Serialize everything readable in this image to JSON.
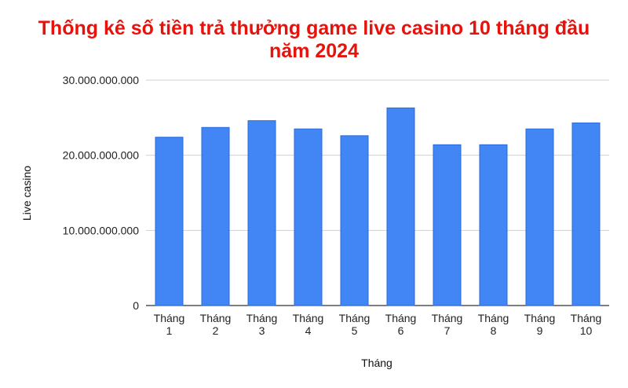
{
  "chart_data": {
    "type": "bar",
    "title_lines": [
      "Thống kê số tiền trả thưởng game live casino 10 tháng đầu",
      "năm 2024"
    ],
    "xlabel": "Tháng",
    "ylabel": "Live casino",
    "categories": [
      [
        "Tháng",
        "1"
      ],
      [
        "Tháng",
        "2"
      ],
      [
        "Tháng",
        "3"
      ],
      [
        "Tháng",
        "4"
      ],
      [
        "Tháng",
        "5"
      ],
      [
        "Tháng",
        "6"
      ],
      [
        "Tháng",
        "7"
      ],
      [
        "Tháng",
        "8"
      ],
      [
        "Tháng",
        "9"
      ],
      [
        "Tháng",
        "10"
      ]
    ],
    "values": [
      22400000000,
      23700000000,
      24600000000,
      23500000000,
      22600000000,
      26300000000,
      21400000000,
      21400000000,
      23500000000,
      24300000000
    ],
    "ylim": [
      0,
      30000000000
    ],
    "yticks": [
      0,
      10000000000,
      20000000000,
      30000000000
    ],
    "ytick_labels": [
      "0",
      "10.000.000.000",
      "20.000.000.000",
      "30.000.000.000"
    ],
    "grid": true,
    "legend": "none",
    "colors": {
      "bar": "#4285f4",
      "bar_edge": "#2a6ad8",
      "title": "#e8120c",
      "grid": "#d0d0d0"
    }
  }
}
